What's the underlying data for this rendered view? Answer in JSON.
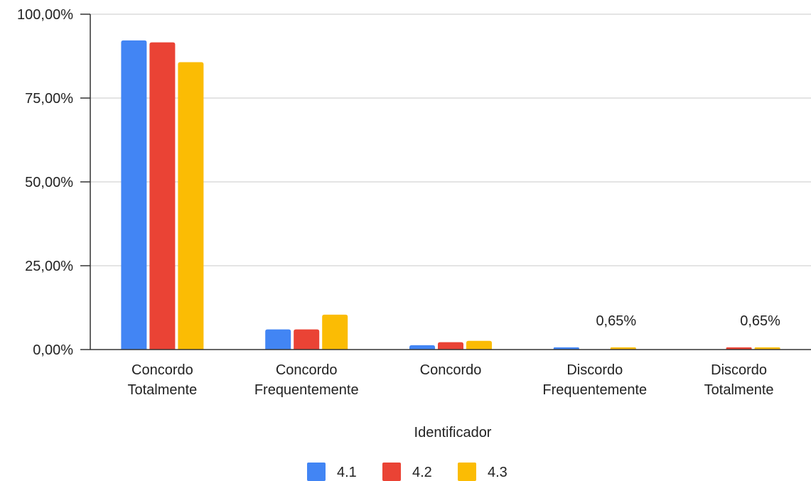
{
  "chart_data": {
    "type": "bar",
    "xlabel": "Identificador",
    "ylabel": "",
    "ylim": [
      0,
      100
    ],
    "yticks": [
      0,
      25,
      50,
      75,
      100
    ],
    "ytick_labels": [
      "0,00%",
      "25,00%",
      "50,00%",
      "75,00%",
      "100,00%"
    ],
    "grid": true,
    "legend_position": "bottom",
    "categories": [
      [
        "Concordo",
        "Totalmente"
      ],
      [
        "Concordo",
        "Frequentemente"
      ],
      [
        "Concordo"
      ],
      [
        "Discordo",
        "Frequentemente"
      ],
      [
        "Discordo",
        "Totalmente"
      ]
    ],
    "series": [
      {
        "name": "4.1",
        "color": "#4285F4",
        "values": [
          92.2,
          6.0,
          1.3,
          0.65,
          0
        ]
      },
      {
        "name": "4.2",
        "color": "#EA4335",
        "values": [
          91.6,
          6.0,
          2.2,
          0,
          0.65
        ]
      },
      {
        "name": "4.3",
        "color": "#FBBC04",
        "values": [
          85.7,
          10.4,
          2.6,
          0.65,
          0.65
        ]
      }
    ],
    "data_labels": [
      {
        "category_index": 3,
        "text": "0,65%"
      },
      {
        "category_index": 4,
        "text": "0,65%"
      }
    ]
  }
}
